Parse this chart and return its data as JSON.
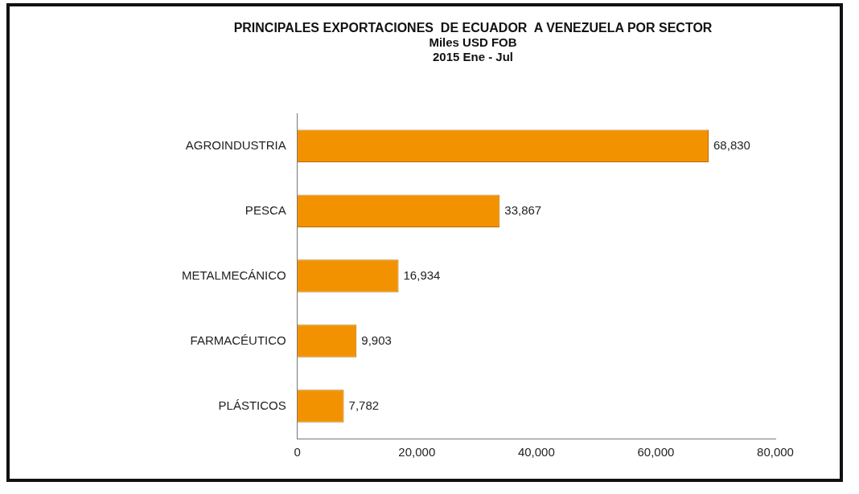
{
  "chart_data": {
    "type": "bar",
    "orientation": "horizontal",
    "title": "PRINCIPALES EXPORTACIONES  DE ECUADOR  A VENEZUELA POR SECTOR",
    "subtitle": [
      "Miles USD FOB",
      "2015 Ene - Jul"
    ],
    "categories": [
      "AGROINDUSTRIA",
      "PESCA",
      "METALMECÁNICO",
      "FARMACÉUTICO",
      "PLÁSTICOS"
    ],
    "values": [
      68830,
      33867,
      16934,
      9903,
      7782
    ],
    "value_labels": [
      "68,830",
      "33,867",
      "16,934",
      "9,903",
      "7,782"
    ],
    "color": "#f39200",
    "xlim": [
      0,
      80000
    ],
    "xticks": [
      0,
      {
        "value": 20000,
        "label": "20,000"
      },
      {
        "value": 40000,
        "label": "40,000"
      },
      {
        "value": 60000,
        "label": "60,000"
      },
      {
        "value": 80000,
        "label": "80,000"
      }
    ],
    "grid": false,
    "legend": false
  }
}
